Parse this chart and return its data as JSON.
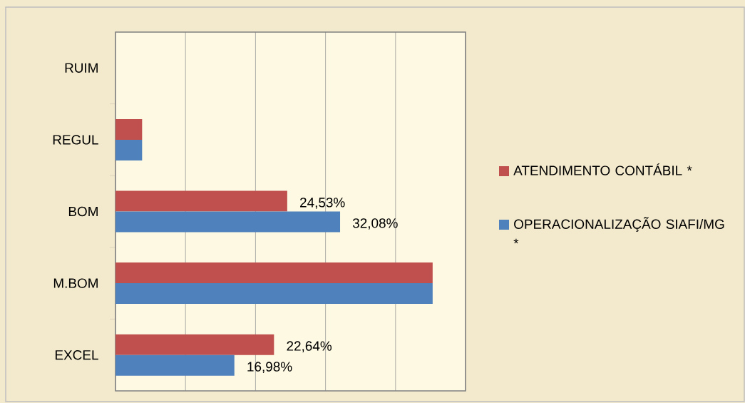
{
  "chart_data": {
    "type": "bar",
    "orientation": "horizontal",
    "categories": [
      "RUIM",
      "REGUL",
      "BOM",
      "M.BOM",
      "EXCEL"
    ],
    "series": [
      {
        "name": "ATENDIMENTO CONTÁBIL *",
        "color": "#c0504d",
        "values": [
          null,
          3.8,
          24.53,
          45.3,
          22.64
        ],
        "value_labels": [
          null,
          null,
          "24,53%",
          null,
          "22,64%"
        ]
      },
      {
        "name": "OPERACIONALIZAÇÃO SIAFI/MG *",
        "color": "#4f81bd",
        "values": [
          null,
          3.8,
          32.08,
          45.3,
          16.98
        ],
        "value_labels": [
          null,
          null,
          "32,08%",
          null,
          "16,98%"
        ]
      }
    ],
    "xlim": [
      0,
      50
    ],
    "xticks": [
      {
        "value": 0,
        "label": null
      },
      {
        "value": 10,
        "label": null
      },
      {
        "value": 20,
        "label": null
      },
      {
        "value": 30,
        "label": null
      },
      {
        "value": 40,
        "label": null
      },
      {
        "value": 50,
        "label": null
      }
    ],
    "tick_labels": "y",
    "grid": "x",
    "legend": "right"
  }
}
